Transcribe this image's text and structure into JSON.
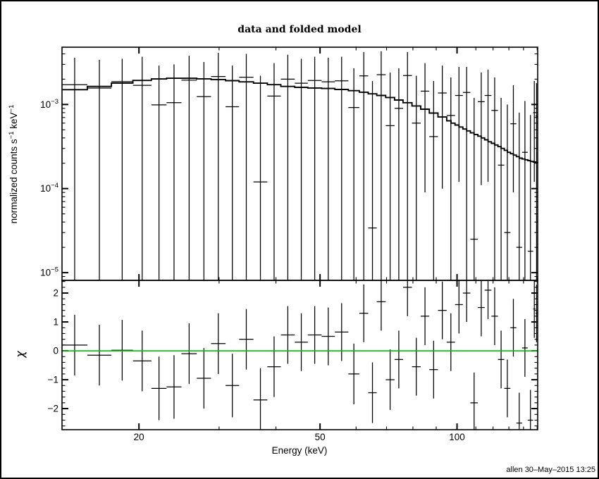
{
  "window": {
    "bg": "#ffffff",
    "border_color": "#000000"
  },
  "title": "data and folded model",
  "signature": "allen 30–May–2015 13:25",
  "colors": {
    "foreground": "#000000",
    "zero_line": "#00c000"
  },
  "chart_data": [
    {
      "type": "scatter",
      "panel": "spectrum",
      "title": "data and folded model",
      "ylabel_parts": [
        "normalized counts s",
        "−1",
        " keV",
        "−1"
      ],
      "xscale": "log",
      "yscale": "log",
      "xlim": [
        13.55,
        150.4
      ],
      "ylim": [
        8.1e-06,
        0.0048
      ],
      "grid": false,
      "y_ticks": [
        {
          "value": 0.001,
          "base": "10",
          "exp": "−3"
        },
        {
          "value": 0.0001,
          "base": "10",
          "exp": "−4"
        },
        {
          "value": 1e-05,
          "base": "10",
          "exp": "−5"
        }
      ],
      "x_ticks": [
        {
          "value": 20
        },
        {
          "value": 50
        },
        {
          "value": 100
        }
      ],
      "x_minor_ticks": [
        30,
        40,
        60,
        70,
        80,
        90,
        110,
        120,
        130,
        140,
        150
      ],
      "model_series": {
        "name": "folded model",
        "style": "step",
        "points": [
          {
            "e": 13.55,
            "v": 0.0015
          },
          {
            "e": 15.4,
            "v": 0.00164
          },
          {
            "e": 17.4,
            "v": 0.0018
          },
          {
            "e": 19.4,
            "v": 0.00193
          },
          {
            "e": 21.3,
            "v": 0.00201
          },
          {
            "e": 23.0,
            "v": 0.00205
          },
          {
            "e": 24.8,
            "v": 0.00205
          },
          {
            "e": 26.8,
            "v": 0.00202
          },
          {
            "e": 28.8,
            "v": 0.00198
          },
          {
            "e": 31.0,
            "v": 0.00192
          },
          {
            "e": 33.2,
            "v": 0.00186
          },
          {
            "e": 35.7,
            "v": 0.00179
          },
          {
            "e": 38.3,
            "v": 0.00172
          },
          {
            "e": 41.0,
            "v": 0.00164
          },
          {
            "e": 44.0,
            "v": 0.0016
          },
          {
            "e": 47.0,
            "v": 0.00157
          },
          {
            "e": 50.4,
            "v": 0.00155
          },
          {
            "e": 53.9,
            "v": 0.00151
          },
          {
            "e": 57.7,
            "v": 0.00146
          },
          {
            "e": 61.0,
            "v": 0.0014
          },
          {
            "e": 63.8,
            "v": 0.00134
          },
          {
            "e": 66.6,
            "v": 0.00128
          },
          {
            "e": 69.7,
            "v": 0.00121
          },
          {
            "e": 72.9,
            "v": 0.00113
          },
          {
            "e": 76.1,
            "v": 0.00105
          },
          {
            "e": 79.6,
            "v": 0.00096
          },
          {
            "e": 83.2,
            "v": 0.00088
          },
          {
            "e": 86.9,
            "v": 0.00079
          },
          {
            "e": 90.8,
            "v": 0.00071
          },
          {
            "e": 94.9,
            "v": 0.00064
          },
          {
            "e": 97.0,
            "v": 0.0006
          },
          {
            "e": 99.0,
            "v": 0.00057
          },
          {
            "e": 101.0,
            "v": 0.00054
          },
          {
            "e": 103.0,
            "v": 0.00051
          },
          {
            "e": 105.0,
            "v": 0.000485
          },
          {
            "e": 107.0,
            "v": 0.00046
          },
          {
            "e": 109.0,
            "v": 0.00044
          },
          {
            "e": 111.1,
            "v": 0.00042
          },
          {
            "e": 113.0,
            "v": 0.0004
          },
          {
            "e": 115.0,
            "v": 0.00038
          },
          {
            "e": 117.0,
            "v": 0.00036
          },
          {
            "e": 119.0,
            "v": 0.000345
          },
          {
            "e": 121.0,
            "v": 0.00033
          },
          {
            "e": 123.0,
            "v": 0.000315
          },
          {
            "e": 125.0,
            "v": 0.0003
          },
          {
            "e": 127.0,
            "v": 0.000285
          },
          {
            "e": 129.0,
            "v": 0.00027
          },
          {
            "e": 131.0,
            "v": 0.00026
          },
          {
            "e": 133.0,
            "v": 0.00025
          },
          {
            "e": 135.0,
            "v": 0.00024
          },
          {
            "e": 137.0,
            "v": 0.00023
          },
          {
            "e": 139.0,
            "v": 0.000225
          },
          {
            "e": 141.0,
            "v": 0.00022
          },
          {
            "e": 143.0,
            "v": 0.000215
          },
          {
            "e": 145.0,
            "v": 0.00021
          },
          {
            "e": 147.0,
            "v": 0.000207
          },
          {
            "e": 149.0,
            "v": 0.000203
          },
          {
            "e": 150.4,
            "v": 0.0002
          }
        ]
      },
      "data_series": {
        "name": "data",
        "marker": "cross",
        "bins": [
          {
            "e_lo": 13.55,
            "e_hi": 15.4,
            "v": 0.00172,
            "err_hi": 0.0036,
            "err_lo": 0
          },
          {
            "e_lo": 15.4,
            "e_hi": 17.4,
            "v": 0.00157,
            "err_hi": 0.0034,
            "err_lo": 0
          },
          {
            "e_lo": 17.4,
            "e_hi": 19.4,
            "v": 0.00187,
            "err_hi": 0.0035,
            "err_lo": 0
          },
          {
            "e_lo": 19.4,
            "e_hi": 21.3,
            "v": 0.00169,
            "err_hi": 0.0037,
            "err_lo": 0
          },
          {
            "e_lo": 21.3,
            "e_hi": 23.0,
            "v": 0.00099,
            "err_hi": 0.0029,
            "err_lo": 0
          },
          {
            "e_lo": 23.0,
            "e_hi": 24.8,
            "v": 0.00105,
            "err_hi": 0.003,
            "err_lo": 0
          },
          {
            "e_lo": 24.8,
            "e_hi": 26.8,
            "v": 0.00195,
            "err_hi": 0.0038,
            "err_lo": 0
          },
          {
            "e_lo": 26.8,
            "e_hi": 28.8,
            "v": 0.00124,
            "err_hi": 0.0032,
            "err_lo": 0
          },
          {
            "e_lo": 28.8,
            "e_hi": 31.0,
            "v": 0.00215,
            "err_hi": 0.0041,
            "err_lo": 0
          },
          {
            "e_lo": 31.0,
            "e_hi": 33.2,
            "v": 0.00094,
            "err_hi": 0.0029,
            "err_lo": 0
          },
          {
            "e_lo": 33.2,
            "e_hi": 35.7,
            "v": 0.00211,
            "err_hi": 0.004,
            "err_lo": 0
          },
          {
            "e_lo": 35.7,
            "e_hi": 38.3,
            "v": 0.00012,
            "err_hi": 0.0022,
            "err_lo": 0
          },
          {
            "e_lo": 38.3,
            "e_hi": 41.0,
            "v": 0.00126,
            "err_hi": 0.0031,
            "err_lo": 0
          },
          {
            "e_lo": 41.0,
            "e_hi": 44.0,
            "v": 0.002,
            "err_hi": 0.0039,
            "err_lo": 0
          },
          {
            "e_lo": 44.0,
            "e_hi": 47.0,
            "v": 0.00179,
            "err_hi": 0.0035,
            "err_lo": 0
          },
          {
            "e_lo": 47.0,
            "e_hi": 50.4,
            "v": 0.00193,
            "err_hi": 0.0037,
            "err_lo": 0
          },
          {
            "e_lo": 50.4,
            "e_hi": 53.9,
            "v": 0.00186,
            "err_hi": 0.0036,
            "err_lo": 0
          },
          {
            "e_lo": 53.9,
            "e_hi": 57.7,
            "v": 0.00191,
            "err_hi": 0.0037,
            "err_lo": 0
          },
          {
            "e_lo": 57.7,
            "e_hi": 61.0,
            "v": 0.00092,
            "err_hi": 0.0027,
            "err_lo": 0
          },
          {
            "e_lo": 61.0,
            "e_hi": 63.8,
            "v": 0.00219,
            "err_hi": 0.0042,
            "err_lo": 0
          },
          {
            "e_lo": 63.8,
            "e_hi": 66.6,
            "v": 3.4e-05,
            "err_hi": 0.0019,
            "err_lo": 0
          },
          {
            "e_lo": 66.6,
            "e_hi": 69.7,
            "v": 0.00226,
            "err_hi": 0.0043,
            "err_lo": 0
          },
          {
            "e_lo": 69.7,
            "e_hi": 72.9,
            "v": 0.00056,
            "err_hi": 0.0024,
            "err_lo": 0
          },
          {
            "e_lo": 72.9,
            "e_hi": 76.1,
            "v": 0.0009,
            "err_hi": 0.0027,
            "err_lo": 0
          },
          {
            "e_lo": 76.1,
            "e_hi": 79.6,
            "v": 0.00221,
            "err_hi": 0.0042,
            "err_lo": 0
          },
          {
            "e_lo": 79.6,
            "e_hi": 83.2,
            "v": 0.0006,
            "err_hi": 0.0022,
            "err_lo": 0
          },
          {
            "e_lo": 83.2,
            "e_hi": 86.9,
            "v": 0.00144,
            "err_hi": 0.0031,
            "err_lo": 9e-05
          },
          {
            "e_lo": 86.9,
            "e_hi": 90.8,
            "v": 0.000415,
            "err_hi": 0.0019,
            "err_lo": 0
          },
          {
            "e_lo": 90.8,
            "e_hi": 94.9,
            "v": 0.00137,
            "err_hi": 0.0029,
            "err_lo": 0.0001
          },
          {
            "e_lo": 94.9,
            "e_hi": 99.0,
            "v": 0.00074,
            "err_hi": 0.0021,
            "err_lo": 0
          },
          {
            "e_lo": 99.0,
            "e_hi": 103.0,
            "v": 0.00128,
            "err_hi": 0.0028,
            "err_lo": 0.00012
          },
          {
            "e_lo": 103.0,
            "e_hi": 107.0,
            "v": 0.00139,
            "err_hi": 0.0028,
            "err_lo": 0
          },
          {
            "e_lo": 107.0,
            "e_hi": 111.1,
            "v": 2.5e-05,
            "err_hi": 0.0012,
            "err_lo": 0
          },
          {
            "e_lo": 111.1,
            "e_hi": 115.0,
            "v": 0.00108,
            "err_hi": 0.0024,
            "err_lo": 0.00011
          },
          {
            "e_lo": 115.0,
            "e_hi": 119.0,
            "v": 0.00128,
            "err_hi": 0.0026,
            "err_lo": 0.00012
          },
          {
            "e_lo": 119.0,
            "e_hi": 123.0,
            "v": 0.00085,
            "err_hi": 0.0021,
            "err_lo": 0
          },
          {
            "e_lo": 123.0,
            "e_hi": 127.0,
            "v": 0.00019,
            "err_hi": 0.0012,
            "err_lo": 0
          },
          {
            "e_lo": 127.0,
            "e_hi": 131.0,
            "v": 3e-05,
            "err_hi": 0.001,
            "err_lo": 0
          },
          {
            "e_lo": 131.0,
            "e_hi": 135.0,
            "v": 0.00059,
            "err_hi": 0.0017,
            "err_lo": 9e-05
          },
          {
            "e_lo": 135.0,
            "e_hi": 139.0,
            "v": 2e-05,
            "err_hi": 0.0008,
            "err_lo": 0
          },
          {
            "e_lo": 139.0,
            "e_hi": 143.0,
            "v": 0.00027,
            "err_hi": 0.0011,
            "err_lo": 0
          },
          {
            "e_lo": 143.0,
            "e_hi": 147.0,
            "v": 1.8e-05,
            "err_hi": 0.00075,
            "err_lo": 0
          },
          {
            "e_lo": 147.0,
            "e_hi": 148.7,
            "v": 0.0008,
            "err_hi": 0.0019,
            "err_lo": 0.00012
          },
          {
            "e_lo": 148.7,
            "e_hi": 150.4,
            "v": 0.00073,
            "err_hi": 0.0018,
            "err_lo": 0
          }
        ]
      }
    },
    {
      "type": "scatter",
      "panel": "residuals",
      "ylabel": "χ",
      "xlabel": "Energy (keV)",
      "xscale": "log",
      "yscale": "linear",
      "xlim": [
        13.55,
        150.4
      ],
      "ylim": [
        -2.73,
        2.44
      ],
      "grid": false,
      "y_ticks": [
        {
          "value": 2,
          "label": "2"
        },
        {
          "value": 1,
          "label": "1"
        },
        {
          "value": 0,
          "label": "0"
        },
        {
          "value": -1,
          "label": "−1"
        },
        {
          "value": -2,
          "label": "−2"
        }
      ],
      "y_minor_step": 0.2,
      "x_ticks": [
        {
          "value": 20,
          "label": "20"
        },
        {
          "value": 50,
          "label": "50"
        },
        {
          "value": 100,
          "label": "100"
        }
      ],
      "x_minor_ticks": [
        30,
        40,
        60,
        70,
        80,
        90,
        110,
        120,
        130,
        140,
        150
      ],
      "zero_line": {
        "value": 0,
        "color": "#00c000"
      },
      "bins": [
        {
          "e_lo": 13.55,
          "e_hi": 15.4,
          "chi": 0.2,
          "err": 1.05
        },
        {
          "e_lo": 15.4,
          "e_hi": 17.4,
          "chi": -0.15,
          "err": 1.05
        },
        {
          "e_lo": 17.4,
          "e_hi": 19.4,
          "chi": 0.02,
          "err": 1.05
        },
        {
          "e_lo": 19.4,
          "e_hi": 21.3,
          "chi": -0.35,
          "err": 1.05
        },
        {
          "e_lo": 21.3,
          "e_hi": 23.0,
          "chi": -1.3,
          "err": 1.1
        },
        {
          "e_lo": 23.0,
          "e_hi": 24.8,
          "chi": -1.25,
          "err": 1.1
        },
        {
          "e_lo": 24.8,
          "e_hi": 26.8,
          "chi": -0.1,
          "err": 1.05
        },
        {
          "e_lo": 26.8,
          "e_hi": 28.8,
          "chi": -0.95,
          "err": 1.05
        },
        {
          "e_lo": 28.8,
          "e_hi": 31.0,
          "chi": 0.25,
          "err": 1.05
        },
        {
          "e_lo": 31.0,
          "e_hi": 33.2,
          "chi": -1.2,
          "err": 1.1
        },
        {
          "e_lo": 33.2,
          "e_hi": 35.7,
          "chi": 0.4,
          "err": 1.05
        },
        {
          "e_lo": 35.7,
          "e_hi": 38.3,
          "chi": -1.7,
          "err": 1.1
        },
        {
          "e_lo": 38.3,
          "e_hi": 41.0,
          "chi": -0.55,
          "err": 1.05
        },
        {
          "e_lo": 41.0,
          "e_hi": 44.0,
          "chi": 0.55,
          "err": 1.0
        },
        {
          "e_lo": 44.0,
          "e_hi": 47.0,
          "chi": 0.3,
          "err": 1.0
        },
        {
          "e_lo": 47.0,
          "e_hi": 50.4,
          "chi": 0.55,
          "err": 1.0
        },
        {
          "e_lo": 50.4,
          "e_hi": 53.9,
          "chi": 0.5,
          "err": 1.0
        },
        {
          "e_lo": 53.9,
          "e_hi": 57.7,
          "chi": 0.65,
          "err": 1.0
        },
        {
          "e_lo": 57.7,
          "e_hi": 61.0,
          "chi": -0.8,
          "err": 1.05
        },
        {
          "e_lo": 61.0,
          "e_hi": 63.8,
          "chi": 1.3,
          "err": 1.0
        },
        {
          "e_lo": 63.8,
          "e_hi": 66.6,
          "chi": -1.45,
          "err": 1.05
        },
        {
          "e_lo": 66.6,
          "e_hi": 69.7,
          "chi": 1.7,
          "err": 1.0
        },
        {
          "e_lo": 69.7,
          "e_hi": 72.9,
          "chi": -1.0,
          "err": 1.05
        },
        {
          "e_lo": 72.9,
          "e_hi": 76.1,
          "chi": -0.3,
          "err": 1.0
        },
        {
          "e_lo": 76.1,
          "e_hi": 79.6,
          "chi": 2.2,
          "err": 1.0
        },
        {
          "e_lo": 79.6,
          "e_hi": 83.2,
          "chi": -0.55,
          "err": 1.0
        },
        {
          "e_lo": 83.2,
          "e_hi": 86.9,
          "chi": 1.2,
          "err": 1.0
        },
        {
          "e_lo": 86.9,
          "e_hi": 90.8,
          "chi": -0.65,
          "err": 1.0
        },
        {
          "e_lo": 90.8,
          "e_hi": 94.9,
          "chi": 1.4,
          "err": 1.0
        },
        {
          "e_lo": 94.9,
          "e_hi": 99.0,
          "chi": 0.3,
          "err": 1.0
        },
        {
          "e_lo": 99.0,
          "e_hi": 103.0,
          "chi": 1.6,
          "err": 1.0
        },
        {
          "e_lo": 103.0,
          "e_hi": 107.0,
          "chi": 2.0,
          "err": 1.0
        },
        {
          "e_lo": 107.0,
          "e_hi": 111.1,
          "chi": -1.8,
          "err": 1.05
        },
        {
          "e_lo": 111.1,
          "e_hi": 115.0,
          "chi": 1.5,
          "err": 1.0
        },
        {
          "e_lo": 115.0,
          "e_hi": 119.0,
          "chi": 2.1,
          "err": 1.0
        },
        {
          "e_lo": 119.0,
          "e_hi": 123.0,
          "chi": 1.2,
          "err": 1.0
        },
        {
          "e_lo": 123.0,
          "e_hi": 127.0,
          "chi": -0.3,
          "err": 1.0
        },
        {
          "e_lo": 127.0,
          "e_hi": 131.0,
          "chi": -1.3,
          "err": 1.0
        },
        {
          "e_lo": 131.0,
          "e_hi": 135.0,
          "chi": 0.8,
          "err": 1.0
        },
        {
          "e_lo": 135.0,
          "e_hi": 139.0,
          "chi": -2.5,
          "err": 1.05
        },
        {
          "e_lo": 139.0,
          "e_hi": 143.0,
          "chi": 0.1,
          "err": 1.0
        },
        {
          "e_lo": 143.0,
          "e_hi": 147.0,
          "chi": -2.4,
          "err": 1.05
        },
        {
          "e_lo": 147.0,
          "e_hi": 148.7,
          "chi": 1.45,
          "err": 1.0
        },
        {
          "e_lo": 148.7,
          "e_hi": 150.4,
          "chi": 1.3,
          "err": 1.0
        }
      ]
    }
  ]
}
